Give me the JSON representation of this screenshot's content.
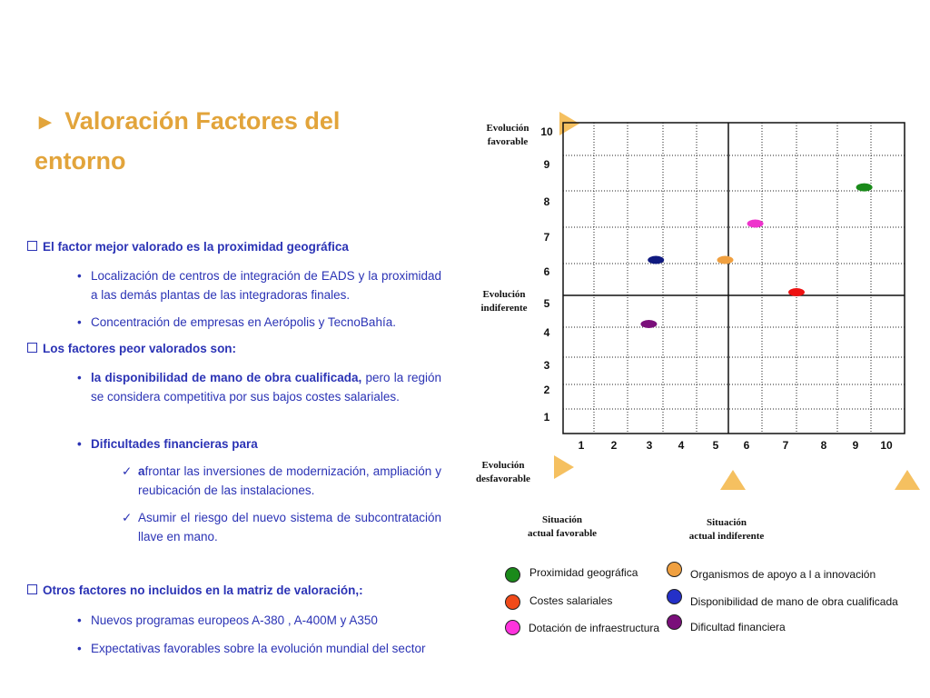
{
  "title": {
    "arrow": "►",
    "text": "Valoración Factores del entorno"
  },
  "sections": [
    {
      "heading": "El factor mejor valorado es la proximidad geográfica",
      "bullets": [
        "Localización de centros de integración de EADS y la proximidad a las demás plantas de las integradoras finales.",
        "Concentración de empresas en Aerópolis y TecnoBahía."
      ]
    },
    {
      "heading": "Los factores peor valorados son:",
      "bullet_bold": "la disponibilidad de mano de obra cualificada,",
      "bullet_rest": " pero la región se considera competitiva por sus bajos costes salariales.",
      "bullet2": "Dificultades financieras para",
      "checks": [
        {
          "bold": "a",
          "text": "frontar las inversiones de modernización, ampliación y reubicación de las instalaciones."
        },
        {
          "bold": "",
          "text": "Asumir el riesgo del nuevo sistema de subcontratación llave en mano."
        }
      ]
    },
    {
      "heading": "Otros factores no incluidos en la matriz de valoración,:",
      "bullets": [
        "Nuevos programas europeos A-380 , A-400M y A350",
        "Expectativas favorables sobre la evolución mundial del sector"
      ]
    }
  ],
  "matrix_labels": {
    "evol_favorable": [
      "Evolución",
      "favorable"
    ],
    "evol_indiferente": [
      "Evolución",
      "indiferente"
    ],
    "evol_desfavorable": [
      "Evolución",
      "desfavorable"
    ],
    "sit_favorable": [
      "Situación",
      "actual favorable"
    ],
    "sit_indiferente": [
      "Situación",
      "actual indiferente"
    ]
  },
  "chart_data": {
    "type": "scatter",
    "x_ticks": [
      "1",
      "2",
      "3",
      "4",
      "5",
      "6",
      "7",
      "8",
      "9",
      "10"
    ],
    "y_ticks": [
      "10",
      "9",
      "8",
      "7",
      "6",
      "5",
      "4",
      "3",
      "2",
      "1"
    ],
    "xlim": [
      0.5,
      10.5
    ],
    "ylim": [
      0.5,
      10.5
    ],
    "points": [
      {
        "name": "Proximidad geográfica",
        "color": "#1a8a1a",
        "x": 9.3,
        "y": 8.6
      },
      {
        "name": "Dotación de infraestructura",
        "color": "#ee33cc",
        "x": 6.3,
        "y": 7.6
      },
      {
        "name": "Disponibilidad de mano de obra cualificada",
        "color": "#101a80",
        "x": 3.3,
        "y": 6.6
      },
      {
        "name": "Organismos de apoyo a l a innovación",
        "color": "#f0a040",
        "x": 5.4,
        "y": 6.6
      },
      {
        "name": "Costes salariales",
        "color": "#ee1111",
        "x": 7.5,
        "y": 5.6
      },
      {
        "name": "Dificultad financiera",
        "color": "#7a0f7a",
        "x": 3.1,
        "y": 4.6
      }
    ]
  },
  "legend": [
    {
      "label": "Proximidad geográfica",
      "color": "#1a8a1a"
    },
    {
      "label": "Organismos de apoyo a l a innovación",
      "color": "#f0a040"
    },
    {
      "label": "Costes salariales",
      "color": "#f04a1a"
    },
    {
      "label": "Disponibilidad de mano de obra cualificada",
      "color": "#2430c8"
    },
    {
      "label": "Dotación de infraestructura",
      "color": "#ff33dd"
    },
    {
      "label": "Dificultad financiera",
      "color": "#7a0f7a"
    }
  ],
  "colors": {
    "title": "#e2a43b",
    "text": "#2b33b5",
    "triangle": "#f5c060"
  }
}
